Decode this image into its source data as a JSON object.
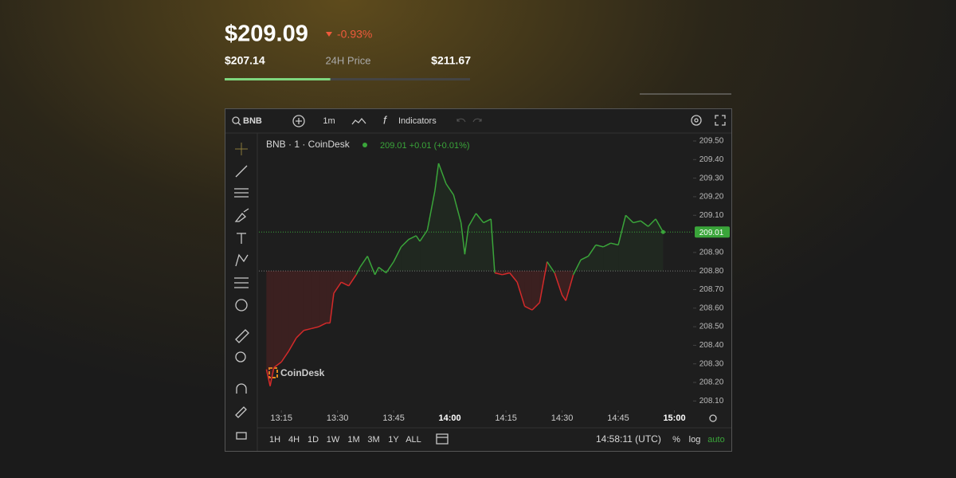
{
  "header": {
    "price": {
      "value": 209.09,
      "label": "$209.09"
    },
    "change": "-0.93%",
    "low": {
      "value": 207.14,
      "label": "$207.14"
    },
    "range_label": "24H Price",
    "high": {
      "value": 211.67,
      "label": "$211.67"
    }
  },
  "toolbar": {
    "symbol": "BNB",
    "interval": "1m",
    "indicators": "Indicators"
  },
  "chart_data": {
    "type": "line",
    "title": "BNB · 1 · CoinDesk",
    "legend_value": "209.01 +0.01 (+0.01%)",
    "watermark": "CoinDesk",
    "x": [
      "13:11",
      "13:12",
      "13:13",
      "13:15",
      "13:17",
      "13:19",
      "13:21",
      "13:23",
      "13:25",
      "13:27",
      "13:28",
      "13:29",
      "13:31",
      "13:33",
      "13:35",
      "13:36",
      "13:38",
      "13:40",
      "13:41",
      "13:43",
      "13:45",
      "13:47",
      "13:49",
      "13:51",
      "13:52",
      "13:54",
      "13:56",
      "13:57",
      "13:59",
      "14:01",
      "14:03",
      "14:04",
      "14:05",
      "14:07",
      "14:09",
      "14:11",
      "14:12",
      "14:14",
      "14:16",
      "14:18",
      "14:20",
      "14:22",
      "14:24",
      "14:26",
      "14:28",
      "14:30",
      "14:31",
      "14:33",
      "14:35",
      "14:37",
      "14:39",
      "14:41",
      "14:43",
      "14:45",
      "14:47",
      "14:49",
      "14:51",
      "14:53",
      "14:55",
      "14:57"
    ],
    "values": [
      208.27,
      208.18,
      208.28,
      208.31,
      208.37,
      208.44,
      208.48,
      208.49,
      208.5,
      208.52,
      208.52,
      208.68,
      208.74,
      208.72,
      208.78,
      208.82,
      208.88,
      208.78,
      208.82,
      208.79,
      208.85,
      208.93,
      208.97,
      208.99,
      208.96,
      209.02,
      209.23,
      209.38,
      209.27,
      209.21,
      209.06,
      208.89,
      209.04,
      209.11,
      209.06,
      209.08,
      208.79,
      208.78,
      208.79,
      208.74,
      208.61,
      208.59,
      208.63,
      208.85,
      208.79,
      208.67,
      208.64,
      208.78,
      208.86,
      208.88,
      208.94,
      208.93,
      208.95,
      208.94,
      209.1,
      209.06,
      209.07,
      209.04,
      209.08,
      209.01
    ],
    "baseline": 208.8,
    "last_price": {
      "value": 209.01,
      "label": "209.01"
    },
    "up_color": "#3aa53a",
    "down_color": "#d42a2a",
    "xlim": [
      "13:09",
      "15:05"
    ],
    "xticks": [
      "13:15",
      "13:30",
      "13:45",
      "14:00",
      "14:15",
      "14:30",
      "14:45",
      "15:00"
    ],
    "ylim": [
      208.05,
      209.53
    ],
    "yticks": [
      {
        "value": 209.5,
        "label": "209.50"
      },
      {
        "value": 209.4,
        "label": "209.40"
      },
      {
        "value": 209.3,
        "label": "209.30"
      },
      {
        "value": 209.2,
        "label": "209.20"
      },
      {
        "value": 209.1,
        "label": "209.10"
      },
      {
        "value": 208.9,
        "label": "208.90"
      },
      {
        "value": 208.8,
        "label": "208.80"
      },
      {
        "value": 208.7,
        "label": "208.70"
      },
      {
        "value": 208.6,
        "label": "208.60"
      },
      {
        "value": 208.5,
        "label": "208.50"
      },
      {
        "value": 208.4,
        "label": "208.40"
      },
      {
        "value": 208.3,
        "label": "208.30"
      },
      {
        "value": 208.2,
        "label": "208.20"
      },
      {
        "value": 208.1,
        "label": "208.10"
      }
    ]
  },
  "footer": {
    "ranges": [
      "1H",
      "4H",
      "1D",
      "1W",
      "1M",
      "3M",
      "1Y",
      "ALL"
    ],
    "clock": "14:58:11 (UTC)",
    "options": [
      "%",
      "log",
      "auto"
    ]
  }
}
